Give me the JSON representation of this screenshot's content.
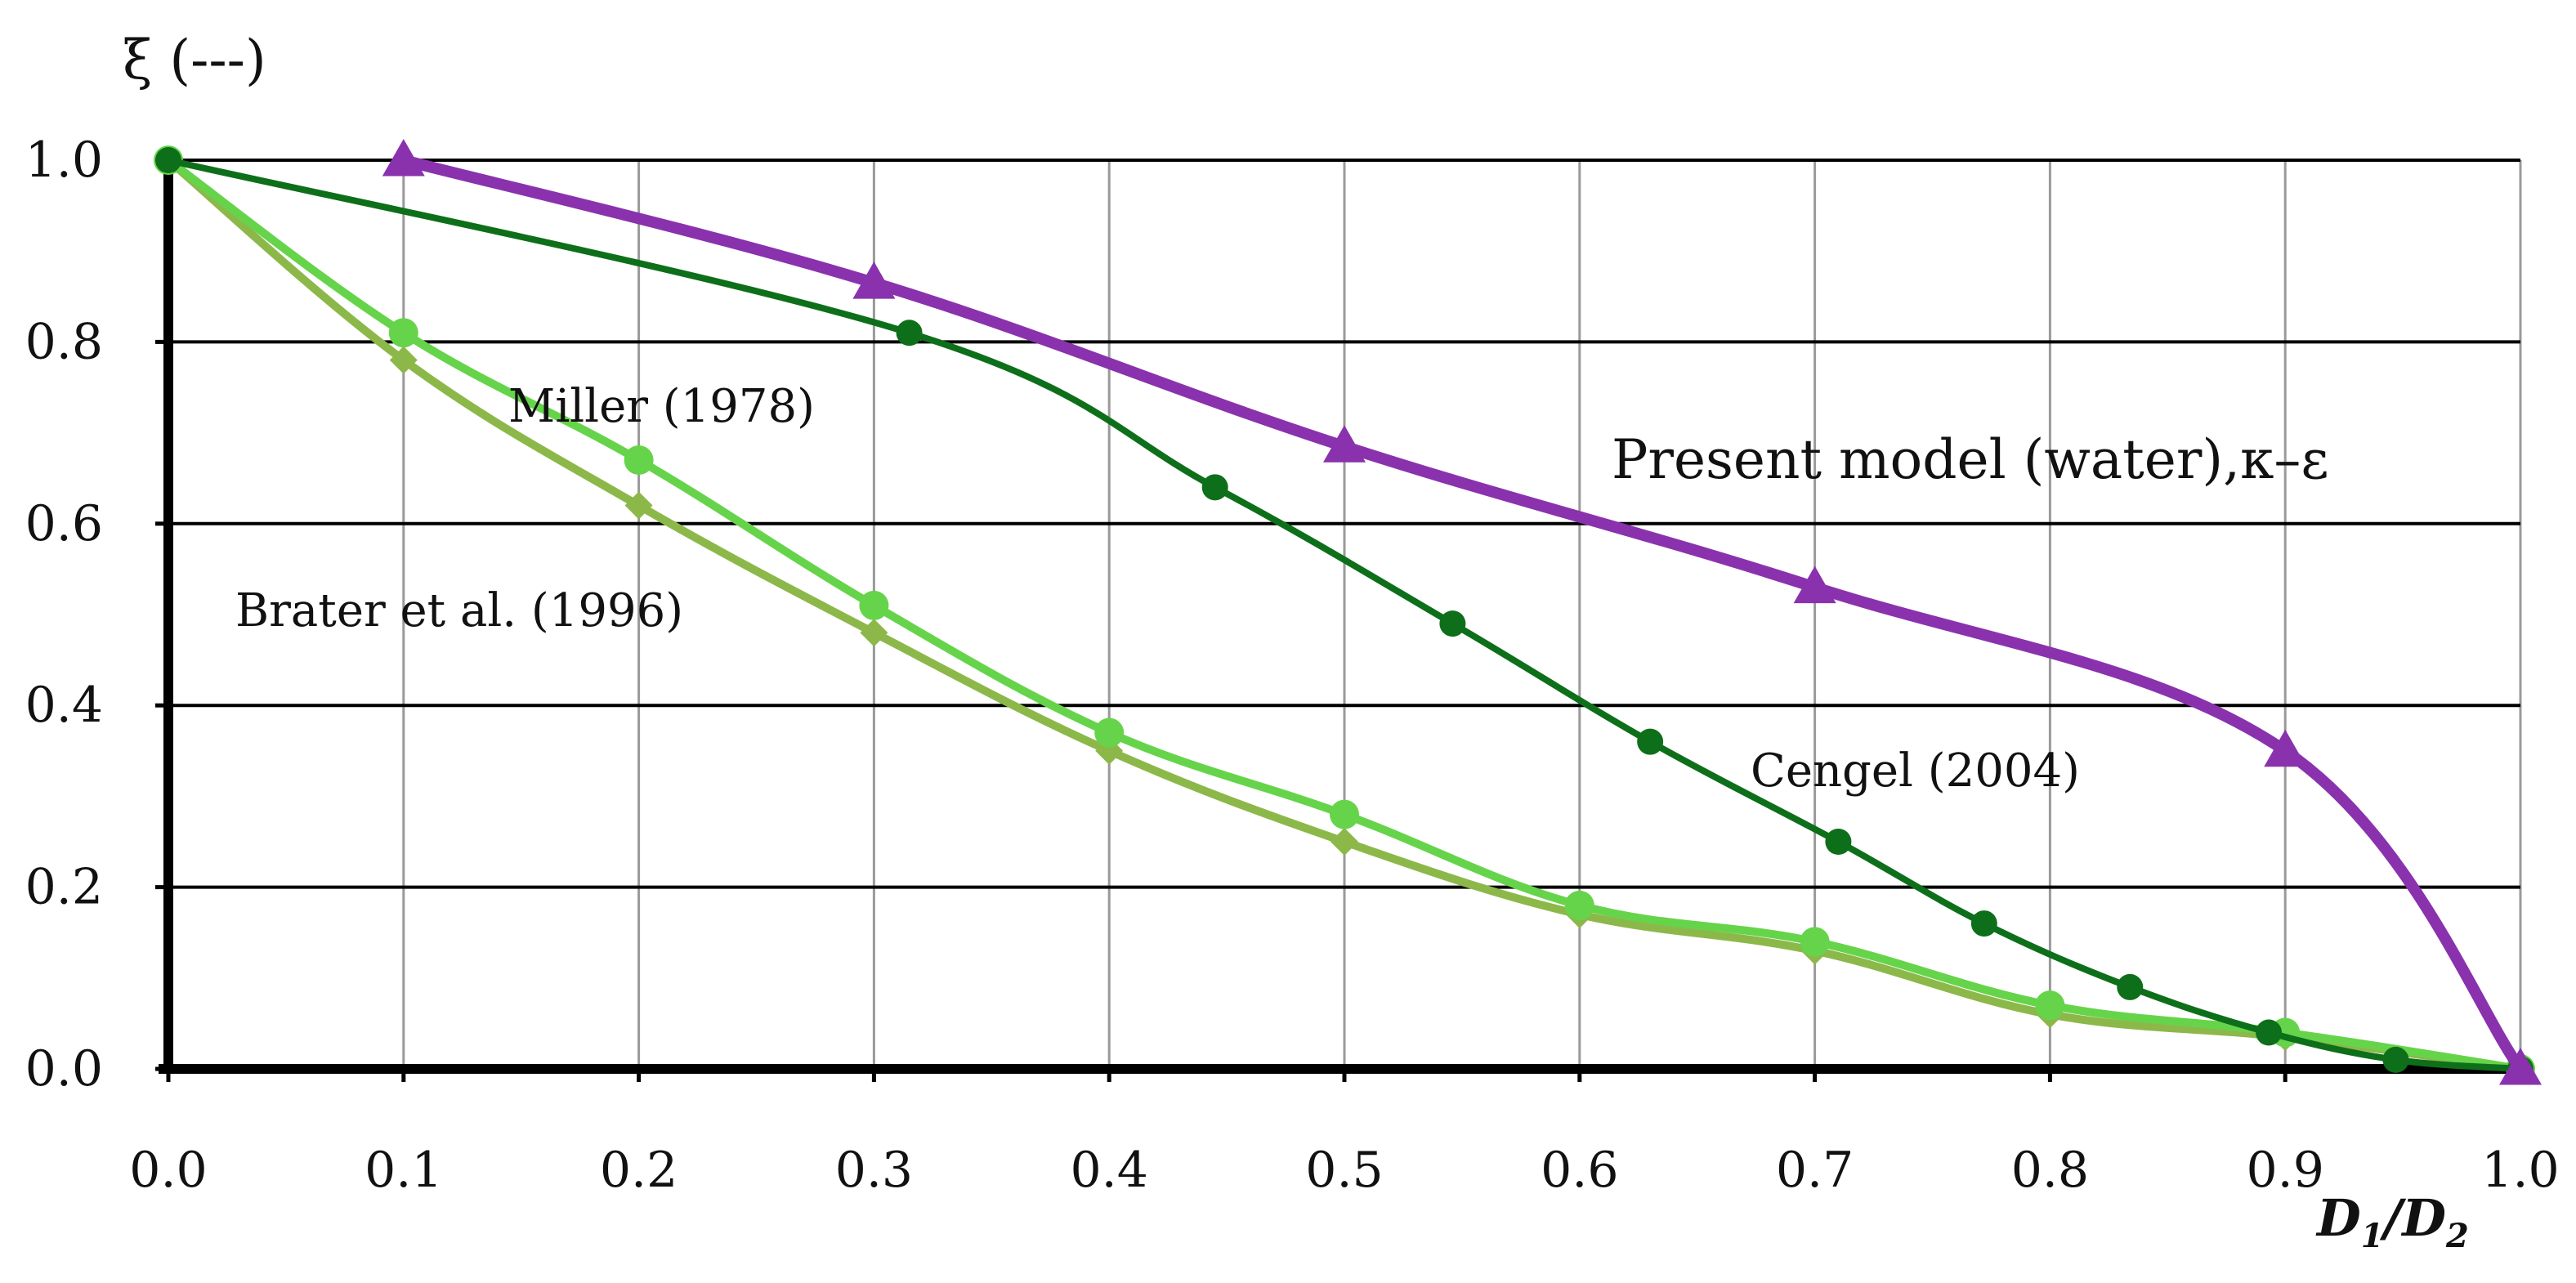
{
  "chart_data": {
    "type": "line",
    "title": "",
    "ylabel": "ξ (---)",
    "xlabel": {
      "d1": "D",
      "d1_sub": "1",
      "slash": "/",
      "d2": "D",
      "d2_sub": "2"
    },
    "xlim": [
      0,
      1
    ],
    "ylim": [
      0,
      1
    ],
    "x_ticks": [
      "0.0",
      "0.1",
      "0.2",
      "0.3",
      "0.4",
      "0.5",
      "0.6",
      "0.7",
      "0.8",
      "0.9",
      "1.0"
    ],
    "y_ticks": [
      "0.0",
      "0.2",
      "0.4",
      "0.6",
      "0.8",
      "1.0"
    ],
    "grid": "on",
    "series": [
      {
        "name": "Present model (water),κ–ε",
        "color": "#8a32ad",
        "marker": "triangle",
        "x": [
          0.1,
          0.3,
          0.5,
          0.7,
          0.9,
          1.0
        ],
        "y": [
          1.0,
          0.865,
          0.685,
          0.53,
          0.35,
          0.0
        ]
      },
      {
        "name": "Cengel (2004)",
        "color": "#0e6f1a",
        "marker": "circle",
        "x": [
          0.0,
          0.315,
          0.445,
          0.546,
          0.63,
          0.71,
          0.772,
          0.834,
          0.893,
          0.947,
          1.0
        ],
        "y": [
          1.0,
          0.81,
          0.64,
          0.49,
          0.36,
          0.25,
          0.16,
          0.09,
          0.04,
          0.01,
          0.0
        ]
      },
      {
        "name": "Miller (1978)",
        "color": "#66d44a",
        "marker": "circle",
        "x": [
          0.0,
          0.1,
          0.2,
          0.3,
          0.4,
          0.5,
          0.6,
          0.7,
          0.8,
          0.9,
          1.0
        ],
        "y": [
          1.0,
          0.81,
          0.67,
          0.51,
          0.37,
          0.28,
          0.18,
          0.14,
          0.07,
          0.04,
          0.0
        ]
      },
      {
        "name": "Brater et al. (1996)",
        "color": "#8cb84a",
        "marker": "diamond",
        "x": [
          0.0,
          0.1,
          0.2,
          0.3,
          0.4,
          0.5,
          0.6,
          0.7,
          0.8,
          0.9,
          1.0
        ],
        "y": [
          1.0,
          0.78,
          0.62,
          0.48,
          0.35,
          0.25,
          0.17,
          0.13,
          0.06,
          0.035,
          0.0
        ]
      }
    ],
    "annotations": [
      {
        "series": "Present model (water),κ–ε",
        "text": "Present model (water),κ–ε",
        "anchor": "right of curve, mid-height"
      },
      {
        "series": "Cengel (2004)",
        "text": "Cengel (2004)",
        "anchor": "below curve, lower right"
      },
      {
        "series": "Miller (1978)",
        "text": "Miller (1978)",
        "anchor": "above curve, upper left"
      },
      {
        "series": "Brater et al. (1996)",
        "text": "Brater et al. (1996)",
        "anchor": "left of curves"
      }
    ]
  }
}
